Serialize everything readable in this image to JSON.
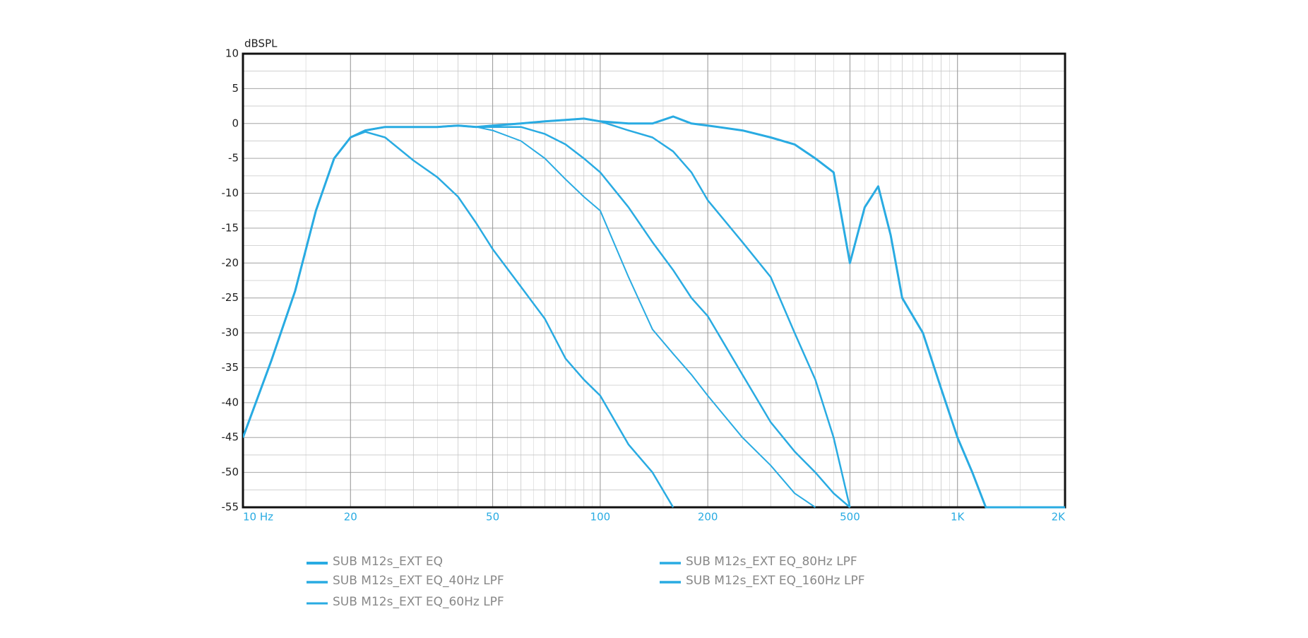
{
  "chart_data": {
    "type": "line",
    "y_label": "dBSPL",
    "log_x": true,
    "grid": true,
    "x": [
      10,
      12,
      14,
      16,
      18,
      20,
      22,
      25,
      30,
      35,
      40,
      45,
      50,
      60,
      70,
      80,
      90,
      100,
      120,
      140,
      160,
      180,
      200,
      250,
      300,
      350,
      400,
      450,
      500,
      550,
      600,
      650,
      700,
      800,
      900,
      1000,
      1100,
      1200,
      1500,
      2000
    ],
    "xlim": [
      10,
      2000
    ],
    "xticks": [
      {
        "value": 10,
        "label": "10  Hz"
      },
      20,
      50,
      100,
      200,
      500,
      {
        "value": 1000,
        "label": "1K"
      },
      {
        "value": 2000,
        "label": "2K"
      }
    ],
    "ylim": [
      -55,
      10
    ],
    "yticks": [
      10,
      5,
      0,
      -5,
      -10,
      -15,
      -20,
      -25,
      -30,
      -35,
      -40,
      -45,
      -50,
      -55
    ],
    "series": [
      {
        "name": "SUB M12s_EXT EQ",
        "color": "#29abe2",
        "values": [
          -45,
          -34,
          -24,
          -12.5,
          -5,
          -2,
          -1,
          -0.5,
          -0.5,
          -0.5,
          -0.3,
          -0.5,
          -0.3,
          0,
          0.3,
          0.5,
          0.7,
          0.3,
          0,
          0,
          1,
          0,
          -0.3,
          -1,
          -2,
          -3,
          -5,
          -7,
          -20,
          -12,
          -9,
          -16,
          -25,
          -30,
          -38,
          -45,
          -50,
          -55,
          -55,
          -55
        ]
      },
      {
        "name": "SUB M12s_EXT EQ_40Hz LPF",
        "color": "#29abe2",
        "values": [
          -45,
          -34,
          -24,
          -12.5,
          -5,
          -2,
          -1.2,
          -2,
          -5.3,
          -7.7,
          -10.5,
          -14.3,
          -18,
          -23.4,
          -28,
          -33.7,
          -36.7,
          -39,
          -46,
          -50,
          -55,
          null,
          null,
          null,
          null,
          null,
          null,
          null,
          null,
          null,
          null,
          null,
          null,
          null,
          null,
          null,
          null,
          null,
          null,
          null
        ]
      },
      {
        "name": "SUB M12s_EXT EQ_60Hz LPF",
        "color": "#29abe2",
        "values": [
          -45,
          -34,
          -24,
          -12.5,
          -5,
          -2,
          -1,
          -0.5,
          -0.5,
          -0.5,
          -0.3,
          -0.5,
          -1,
          -2.5,
          -5,
          -8,
          -10.5,
          -12.5,
          -22,
          -29.5,
          -33,
          -36,
          -39,
          -45,
          -49,
          -53,
          -55,
          null,
          null,
          null,
          null,
          null,
          null,
          null,
          null,
          null,
          null,
          null,
          null,
          null
        ]
      },
      {
        "name": "SUB M12s_EXT EQ_80Hz LPF",
        "color": "#29abe2",
        "values": [
          -45,
          -34,
          -24,
          -12.5,
          -5,
          -2,
          -1,
          -0.5,
          -0.5,
          -0.5,
          -0.3,
          -0.5,
          -0.5,
          -0.5,
          -1.5,
          -3,
          -5,
          -7,
          -12,
          -17,
          -21,
          -25,
          -27.6,
          -36,
          -42.8,
          -47,
          -50,
          -53,
          -55,
          null,
          null,
          null,
          null,
          null,
          null,
          null,
          null,
          null,
          null,
          null
        ]
      },
      {
        "name": "SUB M12s_EXT EQ_160Hz LPF",
        "color": "#29abe2",
        "values": [
          -45,
          -34,
          -24,
          -12.5,
          -5,
          -2,
          -1,
          -0.5,
          -0.5,
          -0.5,
          -0.3,
          -0.5,
          -0.3,
          0,
          0.3,
          0.5,
          0.7,
          0.3,
          -1,
          -2,
          -4,
          -7,
          -11,
          -17,
          -22,
          -30,
          -36.7,
          -45,
          -55,
          null,
          null,
          null,
          null,
          null,
          null,
          null,
          null,
          null,
          null,
          null
        ]
      }
    ]
  }
}
